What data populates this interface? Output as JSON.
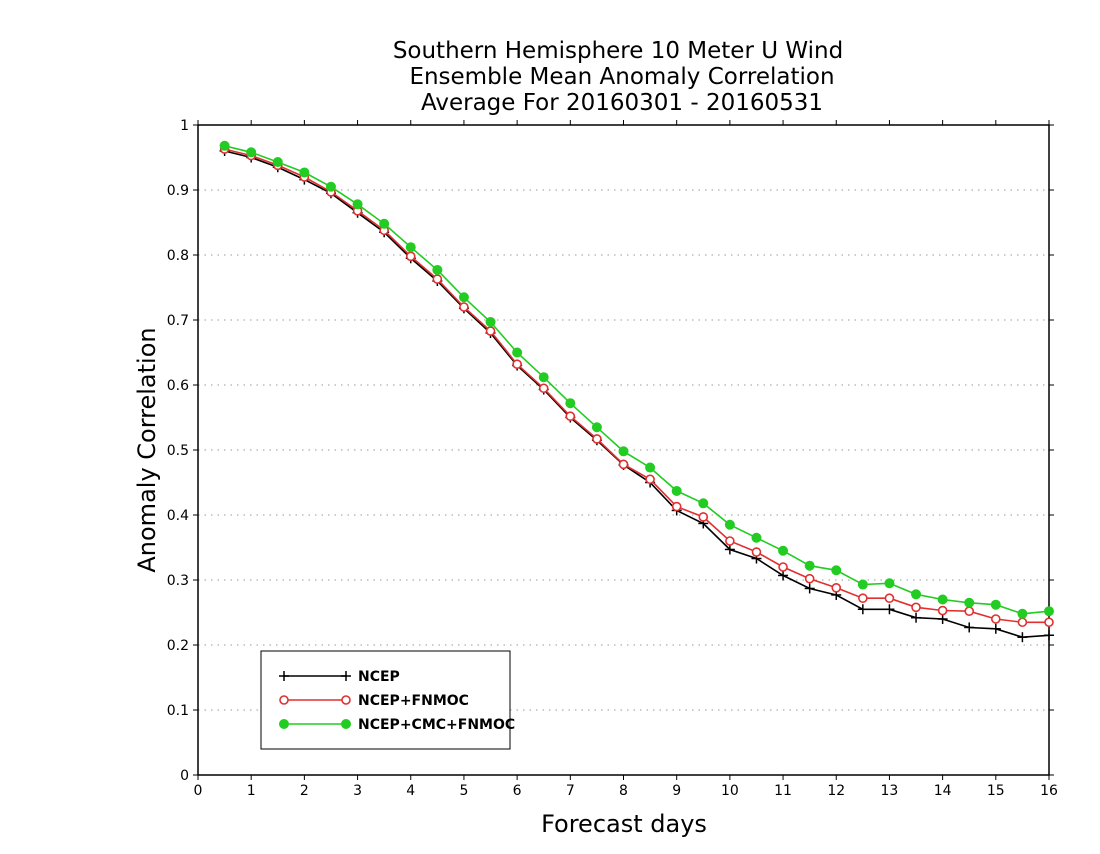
{
  "chart_data": {
    "type": "line",
    "title_lines": [
      "Southern Hemisphere 10 Meter U Wind",
      "Ensemble Mean Anomaly Correlation",
      "Average For 20160301 - 20160531"
    ],
    "xlabel": "Forecast days",
    "ylabel": "Anomaly Correlation",
    "xlim": [
      0,
      16
    ],
    "ylim": [
      0,
      1
    ],
    "xticks": [
      "0",
      "1",
      "2",
      "3",
      "4",
      "5",
      "6",
      "7",
      "8",
      "9",
      "10",
      "11",
      "12",
      "13",
      "14",
      "15",
      "16"
    ],
    "yticks": [
      "0",
      "0.1",
      "0.2",
      "0.3",
      "0.4",
      "0.5",
      "0.6",
      "0.7",
      "0.8",
      "0.9",
      "1"
    ],
    "grid": "dotted-horizontal",
    "legend_position": "bottom-left",
    "x": [
      0.5,
      1,
      1.5,
      2,
      2.5,
      3,
      3.5,
      4,
      4.5,
      5,
      5.5,
      6,
      6.5,
      7,
      7.5,
      8,
      8.5,
      9,
      9.5,
      10,
      10.5,
      11,
      11.5,
      12,
      12.5,
      13,
      13.5,
      14,
      14.5,
      15,
      15.5,
      16
    ],
    "series": [
      {
        "name": "NCEP",
        "color": "#000000",
        "marker": "plus",
        "values": [
          0.96,
          0.95,
          0.935,
          0.916,
          0.895,
          0.865,
          0.835,
          0.795,
          0.76,
          0.718,
          0.68,
          0.63,
          0.593,
          0.55,
          0.515,
          0.477,
          0.45,
          0.407,
          0.387,
          0.347,
          0.333,
          0.307,
          0.287,
          0.277,
          0.255,
          0.255,
          0.242,
          0.24,
          0.227,
          0.225,
          0.212,
          0.215
        ]
      },
      {
        "name": "NCEP+FNMOC",
        "color": "#e03030",
        "marker": "open-circle",
        "values": [
          0.963,
          0.953,
          0.938,
          0.92,
          0.897,
          0.868,
          0.838,
          0.798,
          0.763,
          0.72,
          0.683,
          0.632,
          0.595,
          0.552,
          0.517,
          0.478,
          0.455,
          0.413,
          0.397,
          0.36,
          0.343,
          0.32,
          0.302,
          0.288,
          0.272,
          0.272,
          0.258,
          0.253,
          0.252,
          0.24,
          0.235,
          0.235
        ]
      },
      {
        "name": "NCEP+CMC+FNMOC",
        "color": "#22cc22",
        "marker": "filled-circle",
        "values": [
          0.968,
          0.958,
          0.943,
          0.927,
          0.905,
          0.878,
          0.848,
          0.812,
          0.777,
          0.735,
          0.697,
          0.65,
          0.612,
          0.572,
          0.535,
          0.498,
          0.473,
          0.437,
          0.418,
          0.385,
          0.365,
          0.345,
          0.322,
          0.315,
          0.293,
          0.295,
          0.278,
          0.27,
          0.265,
          0.262,
          0.248,
          0.252
        ]
      }
    ]
  }
}
